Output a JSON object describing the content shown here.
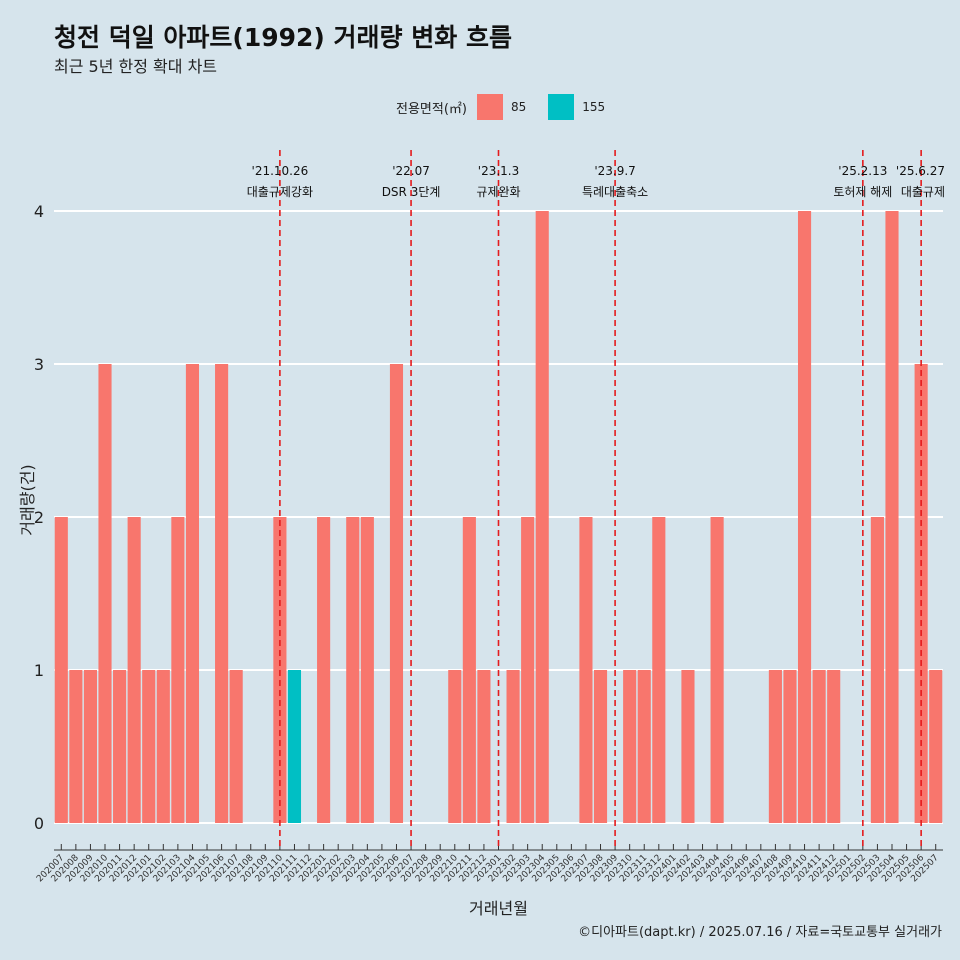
{
  "title": "청전 덕일 아파트(1992) 거래량 변화 흐름",
  "subtitle": "최근 5년 한정 확대 차트",
  "caption": "©디아파트(dapt.kr) / 2025.07.16 / 자료=국토교통부 실거래가",
  "legend": {
    "title": "전용면적(㎡)",
    "items": [
      {
        "label": "85",
        "color": "#f8766d"
      },
      {
        "label": "155",
        "color": "#00bfc4"
      }
    ]
  },
  "chart_data": {
    "type": "bar",
    "xlabel": "거래년월",
    "ylabel": "거래량(건)",
    "ylim": [
      0,
      4
    ],
    "yticks": [
      0,
      1,
      2,
      3,
      4
    ],
    "grid": true,
    "legend_position": "top",
    "categories": [
      "202007",
      "202008",
      "202009",
      "202010",
      "202011",
      "202012",
      "202101",
      "202102",
      "202103",
      "202104",
      "202105",
      "202106",
      "202107",
      "202108",
      "202109",
      "202110",
      "202111",
      "202112",
      "202201",
      "202202",
      "202203",
      "202204",
      "202205",
      "202206",
      "202207",
      "202208",
      "202209",
      "202210",
      "202211",
      "202212",
      "202301",
      "202302",
      "202303",
      "202304",
      "202305",
      "202306",
      "202307",
      "202308",
      "202309",
      "202310",
      "202311",
      "202312",
      "202401",
      "202402",
      "202403",
      "202404",
      "202405",
      "202406",
      "202407",
      "202408",
      "202409",
      "202410",
      "202411",
      "202412",
      "202501",
      "202502",
      "202503",
      "202504",
      "202505",
      "202506",
      "202507"
    ],
    "series": [
      {
        "name": "85",
        "color": "#f8766d",
        "values": [
          2,
          1,
          1,
          3,
          1,
          2,
          1,
          1,
          2,
          3,
          0,
          3,
          1,
          0,
          0,
          2,
          0,
          0,
          2,
          0,
          2,
          2,
          0,
          3,
          0,
          0,
          0,
          1,
          2,
          1,
          0,
          1,
          2,
          4,
          0,
          0,
          2,
          1,
          0,
          1,
          1,
          2,
          0,
          1,
          0,
          2,
          0,
          0,
          0,
          1,
          1,
          4,
          1,
          1,
          0,
          0,
          2,
          4,
          0,
          3,
          1
        ]
      },
      {
        "name": "155",
        "color": "#00bfc4",
        "values": [
          0,
          0,
          0,
          0,
          0,
          0,
          0,
          0,
          0,
          0,
          0,
          0,
          0,
          0,
          0,
          0,
          1,
          0,
          0,
          0,
          0,
          0,
          0,
          0,
          0,
          0,
          0,
          0,
          0,
          0,
          0,
          0,
          0,
          0,
          0,
          0,
          0,
          0,
          0,
          0,
          0,
          0,
          0,
          0,
          0,
          0,
          0,
          0,
          0,
          0,
          0,
          0,
          0,
          0,
          0,
          0,
          0,
          0,
          0,
          0,
          0
        ]
      }
    ],
    "events": [
      {
        "date": "'21.10.26",
        "label": "대출규제강화",
        "category": "202110"
      },
      {
        "date": "'22.07",
        "label": "DSR 3단계",
        "category": "202207"
      },
      {
        "date": "'23.1.3",
        "label": "규제완화",
        "category": "202301"
      },
      {
        "date": "'23.9.7",
        "label": "특례대출축소",
        "category": "202309"
      },
      {
        "date": "'25.2.13",
        "label": "토허제 해제",
        "category": "202502"
      },
      {
        "date": "'25.6.27",
        "label": "대출규제",
        "category": "202506"
      }
    ]
  }
}
